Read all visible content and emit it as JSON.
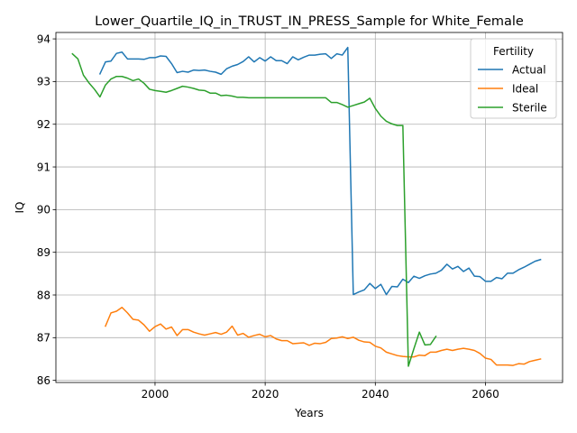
{
  "chart_data": {
    "type": "line",
    "title": "Lower_Quartile_IQ_in_TRUST_IN_PRESS_Sample for White_Female",
    "xlabel": "Years",
    "ylabel": "IQ",
    "xlim": [
      1982,
      2074
    ],
    "ylim": [
      85.95,
      94.15
    ],
    "xticks": [
      2000,
      2020,
      2040,
      2060
    ],
    "yticks": [
      86,
      87,
      88,
      89,
      90,
      91,
      92,
      93,
      94
    ],
    "grid": true,
    "legend": {
      "title": "Fertility",
      "position": "top-right"
    },
    "series": [
      {
        "name": "Actual",
        "color": "#1f77b4",
        "x": [
          1990,
          1991,
          1992,
          1993,
          1994,
          1995,
          1996,
          1997,
          1998,
          1999,
          2000,
          2001,
          2002,
          2003,
          2004,
          2005,
          2006,
          2007,
          2008,
          2009,
          2010,
          2011,
          2012,
          2013,
          2014,
          2015,
          2016,
          2017,
          2018,
          2019,
          2020,
          2021,
          2022,
          2023,
          2024,
          2025,
          2026,
          2027,
          2028,
          2029,
          2030,
          2031,
          2032,
          2033,
          2034,
          2035,
          2036,
          2037,
          2038,
          2039,
          2040,
          2041,
          2042,
          2043,
          2044,
          2045,
          2046,
          2047,
          2048,
          2049,
          2050,
          2051,
          2052,
          2053,
          2054,
          2055,
          2056,
          2057,
          2058,
          2059,
          2060,
          2061,
          2062,
          2063,
          2064,
          2065,
          2066,
          2067,
          2068,
          2069,
          2070
        ],
        "y": [
          93.18,
          93.46,
          93.48,
          93.66,
          93.69,
          93.53,
          93.53,
          93.53,
          93.52,
          93.56,
          93.56,
          93.6,
          93.59,
          93.42,
          93.21,
          93.24,
          93.22,
          93.27,
          93.26,
          93.27,
          93.24,
          93.22,
          93.17,
          93.3,
          93.36,
          93.4,
          93.47,
          93.58,
          93.46,
          93.56,
          93.48,
          93.58,
          93.49,
          93.49,
          93.42,
          93.58,
          93.51,
          93.57,
          93.62,
          93.62,
          93.64,
          93.65,
          93.54,
          93.65,
          93.62,
          93.8,
          88.01,
          88.07,
          88.12,
          88.27,
          88.15,
          88.25,
          88.01,
          88.2,
          88.19,
          88.37,
          88.29,
          88.44,
          88.39,
          88.45,
          88.49,
          88.51,
          88.58,
          88.72,
          88.61,
          88.67,
          88.55,
          88.63,
          88.44,
          88.43,
          88.32,
          88.32,
          88.41,
          88.38,
          88.51,
          88.51,
          88.59,
          88.65,
          88.72,
          88.79,
          88.83
        ]
      },
      {
        "name": "Ideal",
        "color": "#ff7f0e",
        "x": [
          1991,
          1992,
          1993,
          1994,
          1995,
          1996,
          1997,
          1998,
          1999,
          2000,
          2001,
          2002,
          2003,
          2004,
          2005,
          2006,
          2007,
          2008,
          2009,
          2010,
          2011,
          2012,
          2013,
          2014,
          2015,
          2016,
          2017,
          2018,
          2019,
          2020,
          2021,
          2022,
          2023,
          2024,
          2025,
          2026,
          2027,
          2028,
          2029,
          2030,
          2031,
          2032,
          2033,
          2034,
          2035,
          2036,
          2037,
          2038,
          2039,
          2040,
          2041,
          2042,
          2043,
          2044,
          2045,
          2046,
          2047,
          2048,
          2049,
          2050,
          2051,
          2052,
          2053,
          2054,
          2055,
          2056,
          2057,
          2058,
          2059,
          2060,
          2061,
          2062,
          2063,
          2064,
          2065,
          2066,
          2067,
          2068,
          2069,
          2070
        ],
        "y": [
          87.27,
          87.58,
          87.62,
          87.71,
          87.58,
          87.43,
          87.41,
          87.3,
          87.15,
          87.26,
          87.32,
          87.2,
          87.25,
          87.05,
          87.19,
          87.19,
          87.13,
          87.09,
          87.06,
          87.09,
          87.12,
          87.08,
          87.13,
          87.27,
          87.06,
          87.1,
          87.01,
          87.05,
          87.08,
          87.02,
          87.05,
          86.97,
          86.93,
          86.93,
          86.86,
          86.87,
          86.88,
          86.82,
          86.87,
          86.86,
          86.89,
          86.98,
          86.99,
          87.02,
          86.98,
          87.01,
          86.94,
          86.9,
          86.89,
          86.8,
          86.76,
          86.66,
          86.62,
          86.58,
          86.56,
          86.55,
          86.55,
          86.59,
          86.58,
          86.66,
          86.66,
          86.7,
          86.73,
          86.7,
          86.73,
          86.75,
          86.73,
          86.7,
          86.63,
          86.52,
          86.49,
          86.36,
          86.36,
          86.36,
          86.35,
          86.39,
          86.38,
          86.44,
          86.47,
          86.5
        ]
      },
      {
        "name": "Sterile",
        "color": "#2ca02c",
        "x": [
          1985,
          1986,
          1987,
          1988,
          1989,
          1990,
          1991,
          1992,
          1993,
          1994,
          1995,
          1996,
          1997,
          1998,
          1999,
          2000,
          2001,
          2002,
          2003,
          2004,
          2005,
          2006,
          2007,
          2008,
          2009,
          2010,
          2011,
          2012,
          2013,
          2014,
          2015,
          2016,
          2017,
          2018,
          2019,
          2020,
          2021,
          2022,
          2023,
          2024,
          2025,
          2026,
          2027,
          2028,
          2029,
          2030,
          2031,
          2032,
          2033,
          2034,
          2035,
          2036,
          2037,
          2038,
          2039,
          2040,
          2041,
          2042,
          2043,
          2044,
          2045,
          2046,
          2047,
          2048,
          2049,
          2050,
          2051
        ],
        "y": [
          93.65,
          93.53,
          93.15,
          92.97,
          92.82,
          92.64,
          92.92,
          93.06,
          93.12,
          93.12,
          93.08,
          93.02,
          93.06,
          92.96,
          92.82,
          92.79,
          92.77,
          92.75,
          92.79,
          92.84,
          92.89,
          92.87,
          92.84,
          92.8,
          92.79,
          92.73,
          92.73,
          92.67,
          92.68,
          92.66,
          92.63,
          92.63,
          92.62,
          92.62,
          92.62,
          92.62,
          92.62,
          92.62,
          92.62,
          92.62,
          92.62,
          92.62,
          92.62,
          92.62,
          92.62,
          92.62,
          92.62,
          92.51,
          92.51,
          92.46,
          92.4,
          92.44,
          92.48,
          92.52,
          92.61,
          92.37,
          92.19,
          92.07,
          92.01,
          91.97,
          91.97,
          86.33,
          86.74,
          87.13,
          86.83,
          86.84,
          87.03
        ]
      }
    ]
  }
}
